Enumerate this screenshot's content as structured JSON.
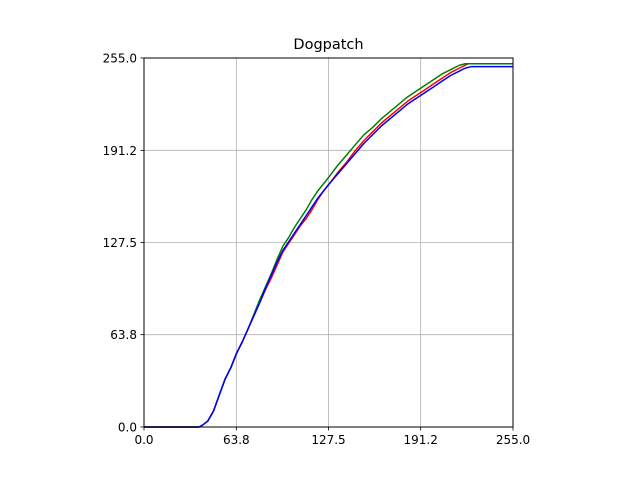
{
  "chart_data": {
    "type": "line",
    "title": "Dogpatch",
    "xlabel": "",
    "ylabel": "",
    "xlim": [
      0,
      255
    ],
    "ylim": [
      0,
      255
    ],
    "xticks": [
      "0.0",
      "63.8",
      "127.5",
      "191.2",
      "255.0"
    ],
    "yticks": [
      "0.0",
      "63.8",
      "127.5",
      "191.2",
      "255.0"
    ],
    "grid": true,
    "legend": "none",
    "series": [
      {
        "color": "#ff0000",
        "x": [
          0,
          38,
          40,
          44,
          48,
          52,
          56,
          60,
          64,
          68,
          72,
          76,
          80,
          84,
          88,
          92,
          96,
          100,
          104,
          108,
          112,
          116,
          120,
          124,
          128,
          134,
          140,
          146,
          152,
          158,
          164,
          170,
          176,
          182,
          188,
          194,
          200,
          206,
          212,
          218,
          222,
          224,
          255
        ],
        "y": [
          0,
          0,
          1,
          4,
          11,
          22,
          33,
          41,
          51,
          59,
          68,
          77,
          86,
          95,
          103,
          112,
          121,
          127,
          133,
          139,
          144,
          150,
          157,
          163,
          168,
          176,
          183,
          191,
          198,
          204,
          210,
          215,
          220,
          225,
          229,
          233,
          237,
          241,
          245,
          248,
          250,
          251,
          251
        ]
      },
      {
        "color": "#008000",
        "x": [
          0,
          38,
          40,
          44,
          48,
          52,
          56,
          60,
          64,
          68,
          72,
          76,
          80,
          84,
          88,
          92,
          96,
          100,
          104,
          108,
          112,
          116,
          120,
          124,
          128,
          134,
          140,
          146,
          152,
          158,
          164,
          170,
          176,
          182,
          188,
          194,
          200,
          206,
          212,
          218,
          222,
          224,
          255
        ],
        "y": [
          0,
          0,
          1,
          4,
          11,
          22,
          33,
          41,
          51,
          59,
          68,
          78,
          88,
          97,
          106,
          116,
          125,
          131,
          138,
          144,
          150,
          157,
          163,
          168,
          173,
          181,
          188,
          195,
          202,
          207,
          213,
          218,
          223,
          228,
          232,
          236,
          240,
          244,
          247,
          250,
          251,
          251,
          251
        ]
      },
      {
        "color": "#0000ff",
        "x": [
          0,
          38,
          40,
          44,
          48,
          52,
          56,
          60,
          64,
          68,
          72,
          76,
          80,
          84,
          88,
          92,
          96,
          100,
          104,
          108,
          112,
          116,
          120,
          124,
          128,
          134,
          140,
          146,
          152,
          158,
          164,
          170,
          176,
          182,
          188,
          194,
          200,
          206,
          212,
          218,
          222,
          226,
          255
        ],
        "y": [
          0,
          0,
          1,
          4,
          11,
          22,
          33,
          41,
          51,
          59,
          68,
          77,
          86,
          96,
          105,
          114,
          122,
          128,
          134,
          140,
          146,
          152,
          158,
          163,
          168,
          175,
          182,
          189,
          196,
          202,
          208,
          213,
          218,
          223,
          227,
          231,
          235,
          239,
          243,
          246,
          248,
          249,
          249
        ]
      }
    ]
  }
}
